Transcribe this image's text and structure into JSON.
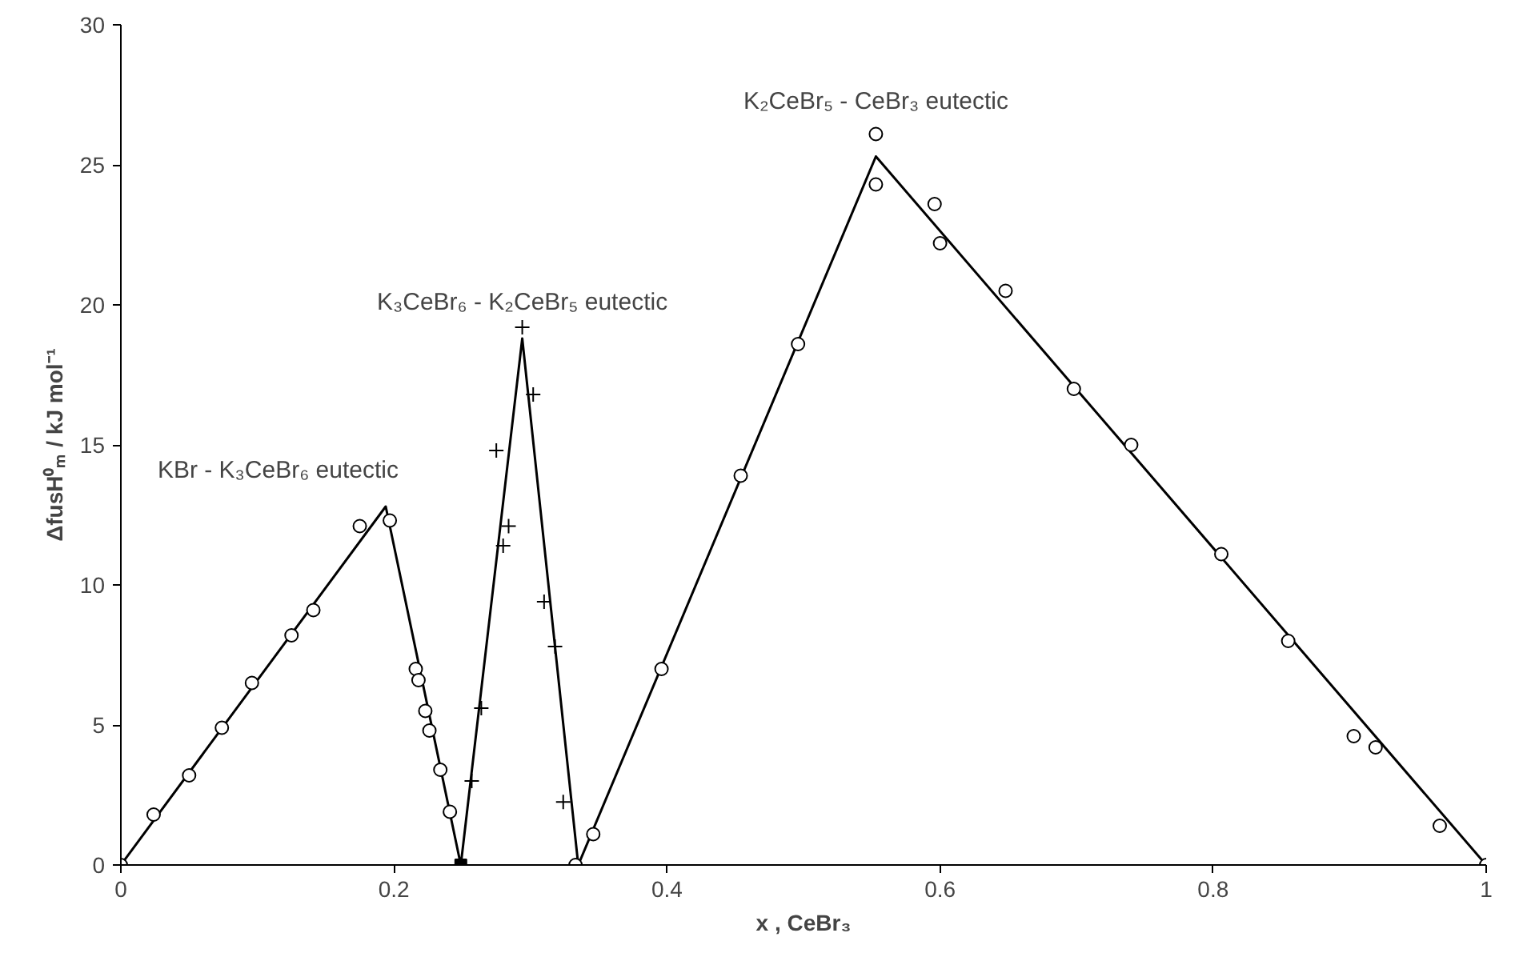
{
  "chart_data": {
    "type": "scatter",
    "xlabel": "x , CeBr₃",
    "ylabel": "ΔfusH⁰ₘ / kJ mol⁻¹",
    "xlim": [
      0,
      1
    ],
    "ylim": [
      0,
      30
    ],
    "xticks": [
      0,
      0.2,
      0.4,
      0.6,
      0.8,
      1
    ],
    "yticks": [
      0,
      5,
      10,
      15,
      20,
      25,
      30
    ],
    "grid": false,
    "series": [
      {
        "type": "line",
        "color": "#000000",
        "marker": "none",
        "line_style": "solid",
        "x": [
          0,
          0.194,
          0.249,
          0.294,
          0.335,
          0.553,
          1.0
        ],
        "values": [
          0,
          12.8,
          0,
          18.8,
          0,
          25.3,
          0
        ]
      },
      {
        "color": "#000000",
        "marker": "circle",
        "x": [
          0,
          0.024,
          0.05,
          0.074,
          0.096,
          0.125,
          0.141,
          0.175,
          0.197,
          0.216,
          0.218,
          0.223,
          0.226,
          0.234,
          0.241,
          0.333,
          0.346,
          0.396,
          0.454,
          0.496,
          0.553,
          0.553,
          0.596,
          0.6,
          0.648,
          0.698,
          0.74,
          0.806,
          0.855,
          0.903,
          0.919,
          0.966,
          1.0
        ],
        "values": [
          0,
          1.8,
          3.2,
          4.9,
          6.5,
          8.2,
          9.1,
          12.1,
          12.3,
          7.0,
          6.6,
          5.5,
          4.8,
          3.4,
          1.9,
          0,
          1.1,
          7.0,
          13.9,
          18.6,
          26.1,
          24.3,
          23.6,
          22.2,
          20.5,
          17.0,
          15.0,
          11.1,
          8.0,
          4.6,
          4.2,
          1.4,
          0
        ]
      },
      {
        "color": "#000000",
        "marker": "cross",
        "x": [
          0.257,
          0.264,
          0.275,
          0.28,
          0.284,
          0.294,
          0.302,
          0.31,
          0.318,
          0.324
        ],
        "values": [
          3.0,
          5.6,
          14.8,
          11.4,
          12.1,
          19.2,
          16.8,
          9.4,
          7.8,
          2.25
        ]
      },
      {
        "color": "#000000",
        "marker": "square",
        "x": [
          0.249
        ],
        "values": [
          0
        ]
      }
    ],
    "annotations": [
      {
        "text": "KBr - K₃CeBr₆ eutectic",
        "x": 0.194,
        "y": 12.8
      },
      {
        "text": "K₃CeBr₆ - K₂CeBr₅ eutectic",
        "x": 0.294,
        "y": 18.8
      },
      {
        "text": "K₂CeBr₅ - CeBr₃ eutectic",
        "x": 0.553,
        "y": 25.3
      }
    ]
  }
}
